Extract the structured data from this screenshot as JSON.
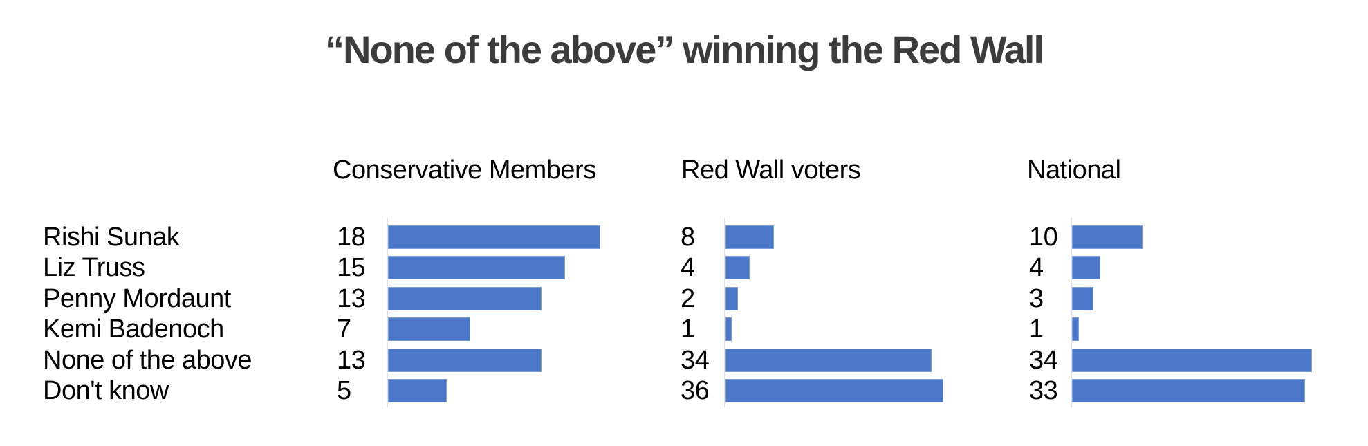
{
  "title": "“None of the above” winning the Red Wall",
  "chart_data": {
    "type": "bar",
    "orientation": "horizontal",
    "title": "“None of the above” winning the Red Wall",
    "categories": [
      "Rishi Sunak",
      "Liz Truss",
      "Penny Mordaunt",
      "Kemi Badenoch",
      "None of the above",
      "Don't know"
    ],
    "series": [
      {
        "name": "Conservative Members",
        "values": [
          18,
          15,
          13,
          7,
          13,
          5
        ]
      },
      {
        "name": "Red Wall voters",
        "values": [
          8,
          4,
          2,
          1,
          34,
          36
        ]
      },
      {
        "name": "National",
        "values": [
          10,
          4,
          3,
          1,
          34,
          33
        ]
      }
    ],
    "value_labels_shown": true,
    "grid": false,
    "legend_position": "column-headers",
    "colors": {
      "bar": "#4a77c8",
      "axis_line": "#dcdfe3",
      "text": "#000000",
      "title": "#3c3c3c",
      "background": "#ffffff"
    }
  }
}
